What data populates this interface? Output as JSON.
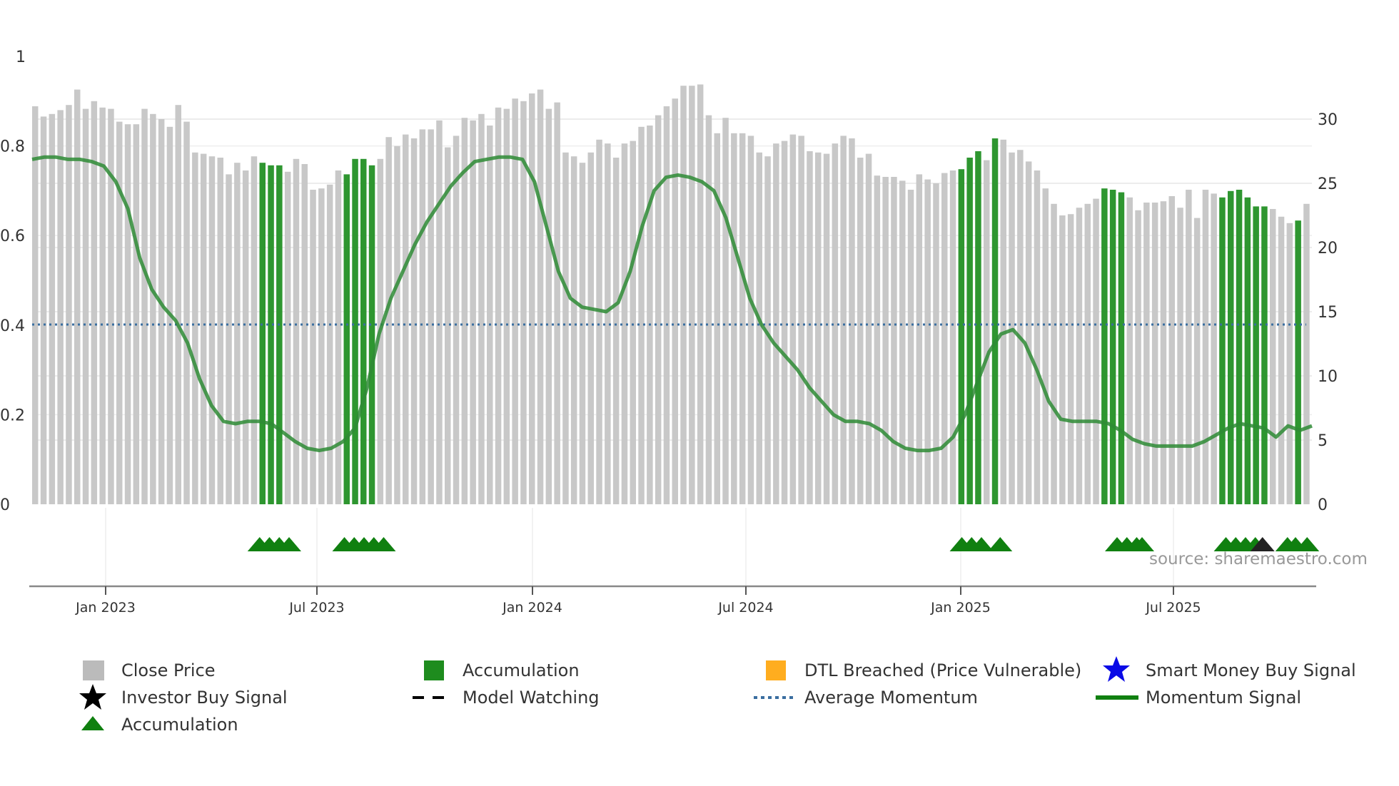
{
  "chart_data": {
    "type": "bar",
    "title": "",
    "left_axis": {
      "ticks": [
        "0",
        "0.2",
        "0.4",
        "0.6",
        "0.8",
        "1"
      ],
      "range": [
        0,
        1
      ]
    },
    "right_axis": {
      "ticks": [
        "0",
        "5",
        "10",
        "15",
        "20",
        "25",
        "30"
      ],
      "range": [
        0,
        35
      ]
    },
    "x_ticks": [
      "Jan 2023",
      "Jul 2023",
      "Jan 2024",
      "Jul 2024",
      "Jan 2025",
      "Jul 2025"
    ],
    "average_momentum": 0.4,
    "close_price": [
      31,
      30.2,
      30.4,
      30.7,
      31.1,
      32.3,
      30.8,
      31.4,
      30.9,
      30.8,
      29.8,
      29.6,
      29.6,
      30.8,
      30.4,
      30,
      29.4,
      31.1,
      29.8,
      27.4,
      27.3,
      27.1,
      27,
      25.7,
      26.6,
      26,
      27.1,
      26.6,
      26.4,
      26.4,
      25.9,
      26.9,
      26.5,
      24.5,
      24.6,
      24.9,
      26,
      25.7,
      26.9,
      26.9,
      26.4,
      26.9,
      28.6,
      27.9,
      28.8,
      28.5,
      29.2,
      29.2,
      29.9,
      27.8,
      28.7,
      30.1,
      29.9,
      30.4,
      29.5,
      30.9,
      30.8,
      31.6,
      31.4,
      32,
      32.3,
      30.8,
      31.3,
      27.4,
      27.1,
      26.6,
      27.4,
      28.4,
      28.1,
      27,
      28.1,
      28.3,
      29.4,
      29.5,
      30.3,
      31,
      31.6,
      32.6,
      32.6,
      32.7,
      30.3,
      28.9,
      30.1,
      28.9,
      28.9,
      28.7,
      27.4,
      27.1,
      28.1,
      28.3,
      28.8,
      28.7,
      27.5,
      27.4,
      27.3,
      28.1,
      28.7,
      28.5,
      27,
      27.3,
      25.6,
      25.5,
      25.5,
      25.2,
      24.5,
      25.7,
      25.3,
      25,
      25.8,
      26,
      26.1,
      27,
      27.5,
      26.8,
      28.5,
      28.4,
      27.4,
      27.6,
      26.7,
      26,
      24.6,
      23.4,
      22.5,
      22.6,
      23.1,
      23.4,
      23.8,
      24.6,
      24.5,
      24.3,
      23.9,
      22.9,
      23.5,
      23.5,
      23.6,
      24,
      23.1,
      24.5,
      22.3,
      24.5,
      24.2,
      23.9,
      24.4,
      24.5,
      23.9,
      23.2,
      23.2,
      23,
      22.4,
      21.9,
      22.1,
      23.4
    ],
    "accumulation_bars": [
      27,
      28,
      29,
      37,
      38,
      39,
      40,
      110,
      111,
      112,
      114,
      127,
      128,
      129,
      141,
      142,
      143,
      144,
      145,
      146,
      150,
      152
    ],
    "momentum_signal": [
      0.77,
      0.775,
      0.775,
      0.77,
      0.77,
      0.765,
      0.755,
      0.72,
      0.66,
      0.55,
      0.48,
      0.44,
      0.41,
      0.36,
      0.28,
      0.22,
      0.185,
      0.18,
      0.185,
      0.185,
      0.18,
      0.16,
      0.14,
      0.125,
      0.12,
      0.125,
      0.14,
      0.17,
      0.26,
      0.38,
      0.46,
      0.52,
      0.58,
      0.63,
      0.67,
      0.71,
      0.74,
      0.765,
      0.77,
      0.775,
      0.775,
      0.77,
      0.72,
      0.62,
      0.52,
      0.46,
      0.44,
      0.435,
      0.43,
      0.45,
      0.52,
      0.62,
      0.7,
      0.73,
      0.735,
      0.73,
      0.72,
      0.7,
      0.64,
      0.55,
      0.46,
      0.4,
      0.36,
      0.33,
      0.3,
      0.26,
      0.23,
      0.2,
      0.185,
      0.185,
      0.18,
      0.165,
      0.14,
      0.125,
      0.12,
      0.12,
      0.125,
      0.15,
      0.2,
      0.27,
      0.34,
      0.38,
      0.39,
      0.36,
      0.3,
      0.23,
      0.19,
      0.185,
      0.185,
      0.185,
      0.18,
      0.165,
      0.145,
      0.135,
      0.13,
      0.13,
      0.13,
      0.13,
      0.14,
      0.155,
      0.17,
      0.18,
      0.175,
      0.17,
      0.15,
      0.175,
      0.165,
      0.175
    ],
    "markers": {
      "accumulation_triangles_x": [
        291,
        302,
        313,
        324,
        386,
        397,
        408,
        419,
        430,
        1078,
        1089,
        1100,
        1121,
        1252,
        1263,
        1274,
        1280,
        1374,
        1385,
        1396,
        1407,
        1443,
        1452,
        1465
      ],
      "investor_buy_triangles_x": [
        1415
      ]
    },
    "legend": [
      "Close Price",
      "Accumulation",
      "DTL Breached (Price Vulnerable)",
      "Smart Money Buy Signal",
      "Investor Buy Signal",
      "Model Watching",
      "Average Momentum",
      "Momentum Signal",
      "Accumulation"
    ],
    "colors": {
      "close_price": "#c8c8c8",
      "accumulation": "#2e9630",
      "dtl": "#ffad1f",
      "smart_money": "#0a0ae6",
      "investor": "#000000",
      "avg_momentum": "#3a6ea0",
      "momentum": "#2e8b35",
      "triangle": "#108010"
    }
  },
  "legend_labels": {
    "close_price": "Close Price",
    "accumulation_bar": "Accumulation",
    "dtl": "DTL Breached (Price Vulnerable)",
    "smart_money": "Smart Money Buy Signal",
    "investor": "Investor Buy Signal",
    "model_watching": "Model Watching",
    "avg_momentum": "Average Momentum",
    "momentum": "Momentum Signal",
    "accumulation_tri": "Accumulation"
  },
  "source": "source: sharemaestro.com"
}
